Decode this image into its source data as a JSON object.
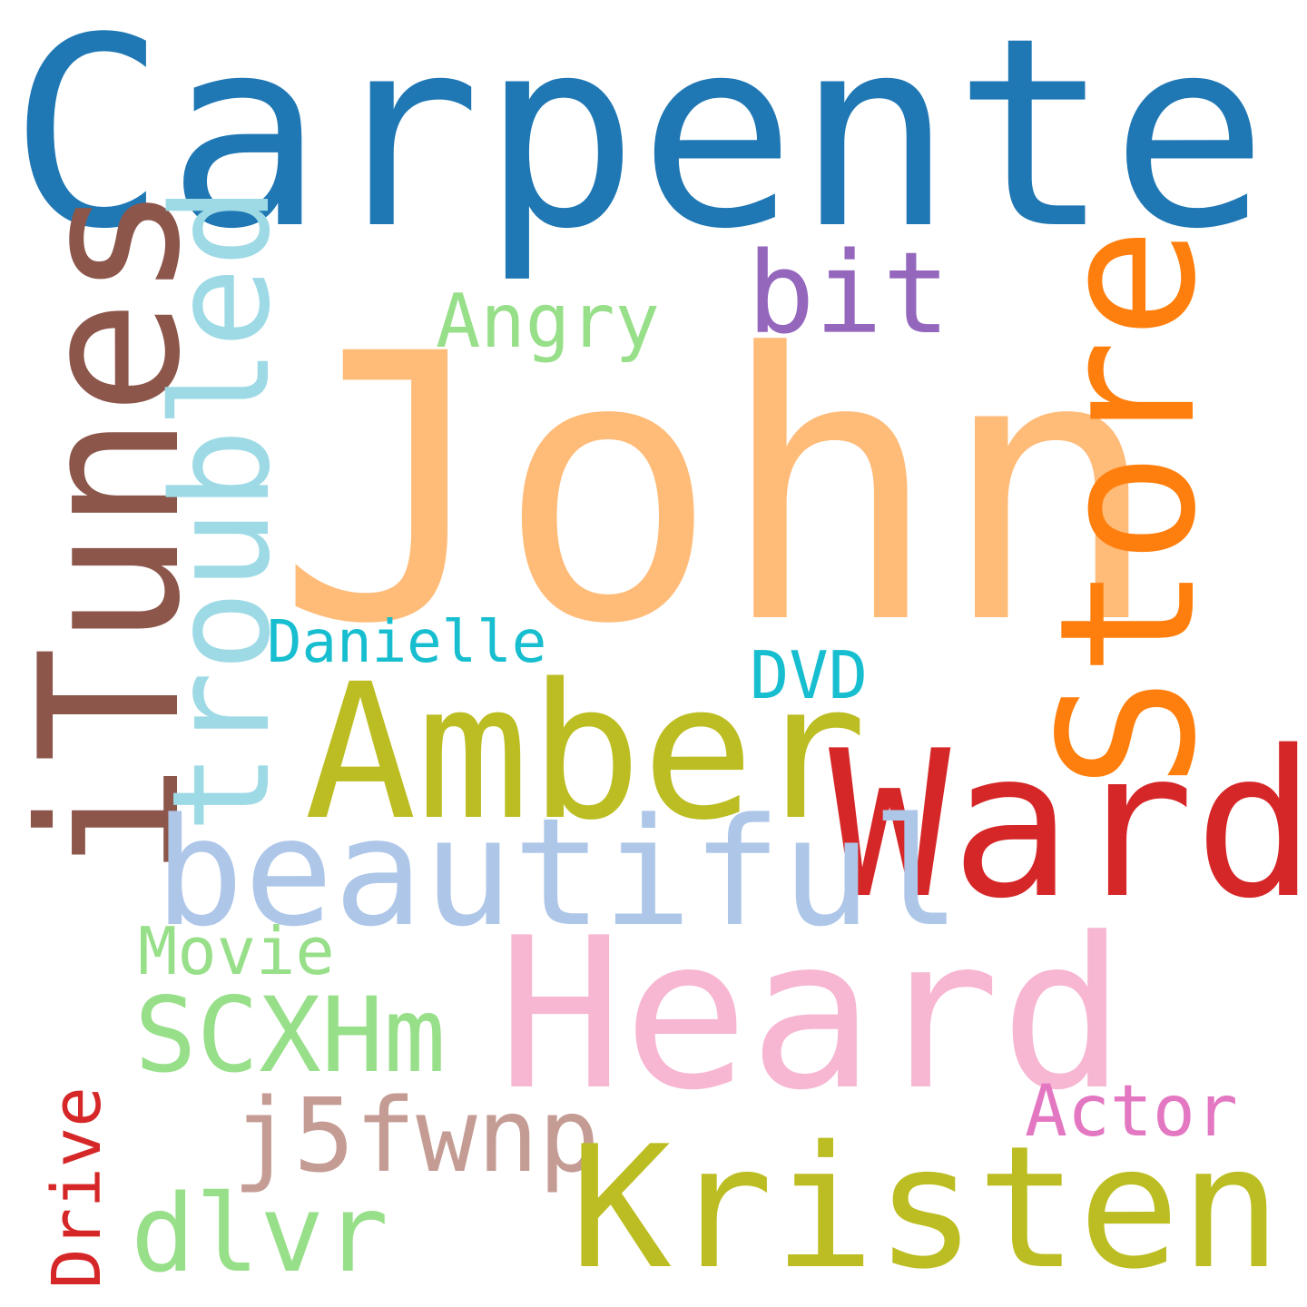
{
  "words": {
    "carpenter": {
      "text": "Carpenter",
      "color": "#1f77b4"
    },
    "john": {
      "text": "John",
      "color": "#ffbb78"
    },
    "itunes": {
      "text": "iTunes",
      "color": "#8c564b"
    },
    "troubled": {
      "text": "troubled",
      "color": "#9edae5"
    },
    "store": {
      "text": "Store",
      "color": "#ff7f0e"
    },
    "bit": {
      "text": "bit",
      "color": "#9467bd"
    },
    "angry": {
      "text": "Angry",
      "color": "#98df8a"
    },
    "danielle": {
      "text": "Danielle",
      "color": "#17becf"
    },
    "dvd": {
      "text": "DVD",
      "color": "#17becf"
    },
    "amber": {
      "text": "Amber",
      "color": "#bcbd22"
    },
    "ward": {
      "text": "Ward",
      "color": "#d62728"
    },
    "beautiful": {
      "text": "beautiful",
      "color": "#aec7e8"
    },
    "movie": {
      "text": "Movie",
      "color": "#98df8a"
    },
    "heard": {
      "text": "Heard",
      "color": "#f7b6d2"
    },
    "scxhm": {
      "text": "SCXHm",
      "color": "#98df8a"
    },
    "actor": {
      "text": "Actor",
      "color": "#e377c2"
    },
    "j5fwnp": {
      "text": "j5fwnp",
      "color": "#c49c94"
    },
    "kristen": {
      "text": "Kristen",
      "color": "#bcbd22"
    },
    "dlvr": {
      "text": "dlvr",
      "color": "#98df8a"
    },
    "drive": {
      "text": "Drive",
      "color": "#d62728"
    }
  }
}
